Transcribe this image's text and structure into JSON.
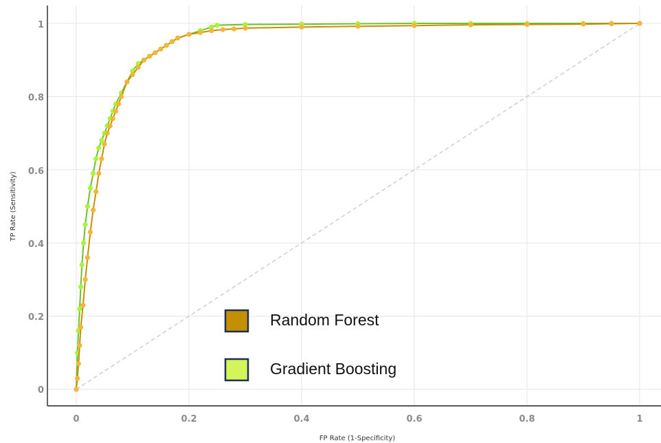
{
  "chart_data": {
    "type": "line",
    "xlabel": "FP Rate (1-Specificity)",
    "ylabel": "TP Rate (Sensitivity)",
    "xlim": [
      0,
      1
    ],
    "ylim": [
      0,
      1
    ],
    "x_ticks": [
      "0",
      "0.2",
      "0.4",
      "0.6",
      "0.8",
      "1"
    ],
    "y_ticks": [
      "0",
      "0.2",
      "0.4",
      "0.6",
      "0.8",
      "1"
    ],
    "grid": true,
    "diagonal_reference": true,
    "legend": {
      "placement": "bottom-center",
      "entries": [
        "Random Forest",
        "Gradient Boosting"
      ]
    },
    "series": [
      {
        "name": "Random Forest",
        "color": "#c48f00",
        "marker_color": "#f5b43b",
        "x": [
          0,
          0.002,
          0.004,
          0.006,
          0.008,
          0.012,
          0.016,
          0.02,
          0.025,
          0.03,
          0.035,
          0.04,
          0.045,
          0.05,
          0.055,
          0.06,
          0.065,
          0.07,
          0.075,
          0.08,
          0.09,
          0.1,
          0.11,
          0.12,
          0.13,
          0.14,
          0.15,
          0.16,
          0.17,
          0.18,
          0.2,
          0.22,
          0.24,
          0.26,
          0.28,
          0.3,
          0.4,
          0.5,
          0.6,
          0.7,
          0.8,
          0.9,
          0.95,
          1
        ],
        "y": [
          0,
          0.03,
          0.07,
          0.12,
          0.17,
          0.23,
          0.3,
          0.36,
          0.43,
          0.49,
          0.54,
          0.59,
          0.63,
          0.67,
          0.7,
          0.72,
          0.74,
          0.76,
          0.78,
          0.8,
          0.84,
          0.86,
          0.88,
          0.9,
          0.91,
          0.92,
          0.93,
          0.94,
          0.95,
          0.96,
          0.97,
          0.975,
          0.98,
          0.983,
          0.985,
          0.987,
          0.99,
          0.992,
          0.994,
          0.996,
          0.997,
          0.998,
          0.999,
          1
        ]
      },
      {
        "name": "Gradient Boosting",
        "color": "#6fbf2a",
        "marker_color": "#a6f53b",
        "x": [
          0,
          0.002,
          0.004,
          0.006,
          0.008,
          0.01,
          0.013,
          0.016,
          0.02,
          0.025,
          0.03,
          0.035,
          0.04,
          0.045,
          0.05,
          0.055,
          0.06,
          0.065,
          0.07,
          0.08,
          0.09,
          0.1,
          0.11,
          0.12,
          0.13,
          0.14,
          0.15,
          0.16,
          0.17,
          0.18,
          0.2,
          0.22,
          0.24,
          0.25,
          0.3,
          0.4,
          0.5,
          0.6,
          0.7,
          0.8,
          0.9,
          0.95,
          1
        ],
        "y": [
          0,
          0.1,
          0.16,
          0.22,
          0.28,
          0.34,
          0.4,
          0.45,
          0.5,
          0.55,
          0.59,
          0.63,
          0.66,
          0.68,
          0.7,
          0.72,
          0.74,
          0.76,
          0.78,
          0.81,
          0.84,
          0.87,
          0.89,
          0.9,
          0.91,
          0.92,
          0.93,
          0.94,
          0.95,
          0.96,
          0.97,
          0.98,
          0.99,
          0.995,
          0.997,
          0.998,
          0.999,
          1,
          1,
          1,
          1,
          1,
          1
        ]
      }
    ],
    "colors": {
      "grid": "#e6e6e6",
      "diagonal": "#c8c8c8",
      "axis": "#222222",
      "rf_swatch": "#c48f00",
      "gb_swatch": "#d4f55a",
      "swatch_border": "#1f2f4f"
    }
  }
}
